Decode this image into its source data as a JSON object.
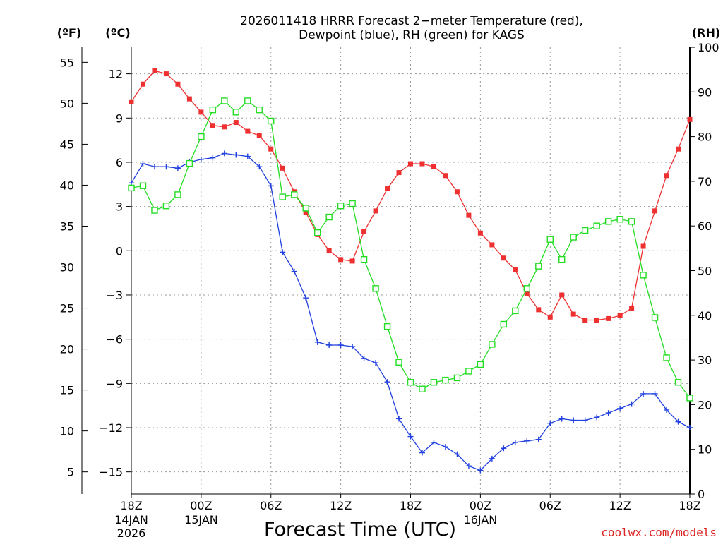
{
  "chart_data": {
    "type": "line",
    "title_line1": "2026011418 HRRR Forecast 2−meter Temperature (red),",
    "title_line2": "Dewpoint (blue), RH (green) for KAGS",
    "xlabel": "Forecast Time (UTC)",
    "credit": "coolwx.com/models",
    "unit_f": "(ºF)",
    "unit_c": "(ºC)",
    "unit_rh": "(RH)",
    "x_range_hours": [
      0,
      48
    ],
    "c_range": [
      -16.5,
      13.8
    ],
    "rh_range": [
      0,
      100
    ],
    "grid": "dotted",
    "x_ticks": [
      {
        "hour": 0,
        "label": "18Z",
        "sub1": "14JAN",
        "sub2": "2026"
      },
      {
        "hour": 6,
        "label": "00Z",
        "sub1": "15JAN",
        "sub2": ""
      },
      {
        "hour": 12,
        "label": "06Z",
        "sub1": "",
        "sub2": ""
      },
      {
        "hour": 18,
        "label": "12Z",
        "sub1": "",
        "sub2": ""
      },
      {
        "hour": 24,
        "label": "18Z",
        "sub1": "",
        "sub2": ""
      },
      {
        "hour": 30,
        "label": "00Z",
        "sub1": "16JAN",
        "sub2": ""
      },
      {
        "hour": 36,
        "label": "06Z",
        "sub1": "",
        "sub2": ""
      },
      {
        "hour": 42,
        "label": "12Z",
        "sub1": "",
        "sub2": ""
      },
      {
        "hour": 48,
        "label": "18Z",
        "sub1": "",
        "sub2": ""
      }
    ],
    "c_ticks": [
      {
        "value": 12,
        "label": "12"
      },
      {
        "value": 9,
        "label": "9"
      },
      {
        "value": 6,
        "label": "6"
      },
      {
        "value": 3,
        "label": "3"
      },
      {
        "value": 0,
        "label": "0"
      },
      {
        "value": -3,
        "label": "−3"
      },
      {
        "value": -6,
        "label": "−6"
      },
      {
        "value": -9,
        "label": "−9"
      },
      {
        "value": -12,
        "label": "−12"
      },
      {
        "value": -15,
        "label": "−15"
      }
    ],
    "f_ticks": [
      {
        "value": 55,
        "label": "55"
      },
      {
        "value": 50,
        "label": "50"
      },
      {
        "value": 45,
        "label": "45"
      },
      {
        "value": 40,
        "label": "40"
      },
      {
        "value": 35,
        "label": "35"
      },
      {
        "value": 30,
        "label": "30"
      },
      {
        "value": 25,
        "label": "25"
      },
      {
        "value": 20,
        "label": "20"
      },
      {
        "value": 15,
        "label": "15"
      },
      {
        "value": 10,
        "label": "10"
      },
      {
        "value": 5,
        "label": "5"
      }
    ],
    "rh_ticks": [
      {
        "value": 100,
        "label": "100"
      },
      {
        "value": 90,
        "label": "90"
      },
      {
        "value": 80,
        "label": "80"
      },
      {
        "value": 70,
        "label": "70"
      },
      {
        "value": 60,
        "label": "60"
      },
      {
        "value": 50,
        "label": "50"
      },
      {
        "value": 40,
        "label": "40"
      },
      {
        "value": 30,
        "label": "30"
      },
      {
        "value": 20,
        "label": "20"
      },
      {
        "value": 10,
        "label": "10"
      },
      {
        "value": 0,
        "label": "0"
      }
    ],
    "series": [
      {
        "name": "2-meter Temperature",
        "unit": "C",
        "color": "#ee3030",
        "marker": "filled-square",
        "values": [
          10.1,
          11.3,
          12.2,
          12.0,
          11.3,
          10.3,
          9.4,
          8.5,
          8.4,
          8.7,
          8.1,
          7.8,
          6.9,
          5.6,
          4.0,
          2.6,
          1.1,
          0.0,
          -0.6,
          -0.7,
          1.3,
          2.7,
          4.2,
          5.3,
          5.9,
          5.9,
          5.7,
          5.1,
          4.0,
          2.4,
          1.2,
          0.4,
          -0.5,
          -1.3,
          -2.9,
          -4.0,
          -4.5,
          -3.0,
          -4.3,
          -4.7,
          -4.7,
          -4.6,
          -4.4,
          -3.9,
          0.3,
          2.7,
          5.1,
          6.9,
          8.9
        ]
      },
      {
        "name": "Dewpoint",
        "unit": "C",
        "color": "#2040e0",
        "marker": "plus",
        "values": [
          4.6,
          5.9,
          5.7,
          5.7,
          5.6,
          6.0,
          6.2,
          6.3,
          6.6,
          6.5,
          6.4,
          5.7,
          4.4,
          -0.1,
          -1.4,
          -3.2,
          -6.2,
          -6.4,
          -6.4,
          -6.5,
          -7.3,
          -7.6,
          -8.9,
          -11.4,
          -12.6,
          -13.7,
          -13.0,
          -13.3,
          -13.8,
          -14.6,
          -14.9,
          -14.1,
          -13.4,
          -13.0,
          -12.9,
          -12.8,
          -11.7,
          -11.4,
          -11.5,
          -11.5,
          -11.3,
          -11.0,
          -10.7,
          -10.4,
          -9.7,
          -9.7,
          -10.8,
          -11.6,
          -12.0
        ]
      },
      {
        "name": "RH",
        "unit": "%",
        "color": "#22dd22",
        "marker": "open-square",
        "values": [
          68.5,
          69,
          63.5,
          64.5,
          67,
          74,
          80,
          86,
          88,
          85.5,
          88,
          86,
          83.5,
          66.5,
          67,
          64,
          58.5,
          62,
          64.5,
          65,
          52.5,
          46,
          37.5,
          29.5,
          25,
          23.5,
          25,
          25.5,
          26,
          27.5,
          29,
          33.5,
          38,
          41,
          46,
          51,
          57,
          52.5,
          57.5,
          59,
          60,
          61,
          61.5,
          61,
          49,
          39.5,
          30.5,
          25,
          21.5
        ]
      }
    ]
  }
}
